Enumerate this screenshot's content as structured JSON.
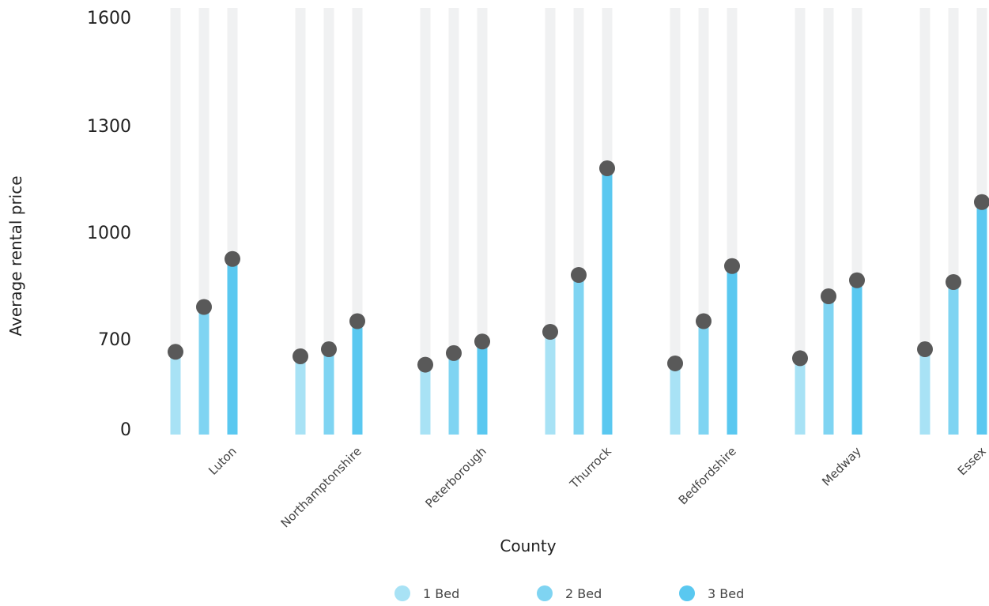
{
  "chart_data": {
    "type": "lollipop",
    "title": "",
    "xlabel": "County",
    "ylabel": "Average rental price",
    "categories": [
      "Luton",
      "Northamptonshire",
      "Peterborough",
      "Thurrock",
      "Bedfordshire",
      "Medway",
      "Essex"
    ],
    "series": [
      {
        "name": "1 Bed",
        "color": "#a8e2f5",
        "values": [
          600,
          565,
          500,
          720,
          510,
          550,
          620
        ]
      },
      {
        "name": "2 Bed",
        "color": "#7fd4f2",
        "values": [
          790,
          620,
          590,
          880,
          750,
          820,
          860
        ]
      },
      {
        "name": "3 Bed",
        "color": "#5ac8f0",
        "values": [
          925,
          750,
          680,
          1180,
          905,
          865,
          1085
        ]
      }
    ],
    "y_ticks": [
      0,
      700,
      1000,
      1300,
      1600
    ],
    "background_track_color": "#f0f1f2",
    "marker_color": "#595959",
    "legend_position": "bottom",
    "grid": false
  }
}
